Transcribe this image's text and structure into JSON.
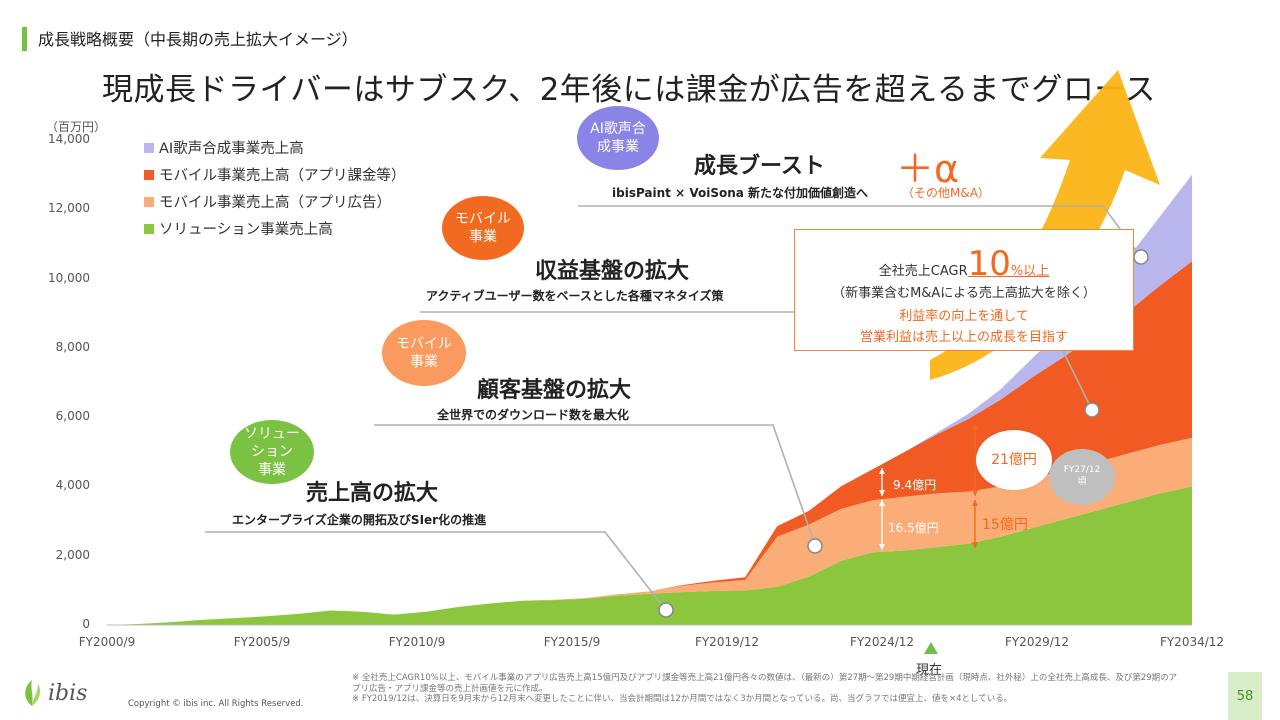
{
  "header": {
    "section_title": "成長戦略概要（中長期の売上拡大イメージ）",
    "headline": "現成長ドライバーはサブスク、2年後には課金が広告を超えるまでグロース"
  },
  "chart_data": {
    "type": "area",
    "stacked": true,
    "unit_label": "（百万円）",
    "ylim": [
      0,
      14000
    ],
    "y_ticks": [
      "0",
      "2,000",
      "4,000",
      "6,000",
      "8,000",
      "10,000",
      "12,000",
      "14,000"
    ],
    "x_tick_labels": [
      "FY2000/9",
      "FY2005/9",
      "FY2010/9",
      "FY2015/9",
      "FY2019/12",
      "FY2024/12",
      "FY2029/12",
      "FY2034/12"
    ],
    "x": [
      2000,
      2001,
      2002,
      2003,
      2004,
      2005,
      2006,
      2007,
      2008,
      2009,
      2010,
      2011,
      2012,
      2013,
      2014,
      2015,
      2016,
      2017,
      2018,
      2019,
      2020,
      2021,
      2022,
      2023,
      2024,
      2025,
      2026,
      2027,
      2028,
      2029,
      2030,
      2031,
      2032,
      2033,
      2034
    ],
    "series": [
      {
        "name": "ソリューション事業売上高",
        "color": "#8cc63f",
        "values": [
          0,
          30,
          80,
          150,
          200,
          250,
          320,
          420,
          380,
          300,
          380,
          520,
          620,
          700,
          720,
          760,
          850,
          900,
          950,
          980,
          1000,
          1100,
          1400,
          1850,
          2100,
          2150,
          2250,
          2350,
          2550,
          2800,
          3050,
          3300,
          3550,
          3800,
          4000
        ]
      },
      {
        "name": "モバイル事業売上高（アプリ広告）",
        "color": "#fbad78",
        "values": [
          0,
          0,
          0,
          0,
          0,
          0,
          0,
          0,
          0,
          0,
          0,
          0,
          0,
          0,
          10,
          20,
          40,
          70,
          180,
          250,
          300,
          1450,
          1500,
          1500,
          1500,
          1550,
          1550,
          1500,
          1450,
          1450,
          1400,
          1400,
          1400,
          1400,
          1400
        ]
      },
      {
        "name": "モバイル事業売上高（アプリ課金等）",
        "color": "#f15a22",
        "values": [
          0,
          0,
          0,
          0,
          0,
          0,
          0,
          0,
          0,
          0,
          0,
          0,
          0,
          0,
          0,
          0,
          0,
          0,
          20,
          50,
          80,
          300,
          400,
          650,
          900,
          1300,
          1700,
          2100,
          2500,
          2900,
          3300,
          3700,
          4100,
          4600,
          5100
        ]
      },
      {
        "name": "AI歌声合成事業売上高",
        "color": "#b9b6ee",
        "values": [
          0,
          0,
          0,
          0,
          0,
          0,
          0,
          0,
          0,
          0,
          0,
          0,
          0,
          0,
          0,
          0,
          0,
          0,
          0,
          0,
          0,
          0,
          0,
          0,
          0,
          0,
          50,
          150,
          300,
          550,
          850,
          1150,
          1550,
          2000,
          2500
        ]
      }
    ],
    "current_marker_label": "現在",
    "annotations": {
      "ad_revenue": "16.5億円",
      "billing_revenue": "9.4億円",
      "ad_target": "15億円",
      "billing_target": "21億円",
      "fy_estimate": "FY27/12\n頃"
    }
  },
  "bubbles": {
    "ai": "AI歌声合\n成事業",
    "mobile1": "モバイル\n事業",
    "mobile2": "モバイル\n事業",
    "solution": "ソリュー\nション\n事業"
  },
  "growth_boost": {
    "title": "成長ブースト",
    "plus_alpha": "＋α",
    "subtitle": "ibisPaint × VoiSona 新たな付加価値創造へ",
    "other": "（その他M&A）"
  },
  "revenue_base": {
    "title": "収益基盤の拡大",
    "subtitle": "アクティブユーザー数をベースとした各種マネタイズ策"
  },
  "customer_base": {
    "title": "顧客基盤の拡大",
    "subtitle": "全世界でのダウンロード数を最大化"
  },
  "sales_expansion": {
    "title": "売上高の拡大",
    "subtitle": "エンタープライズ企業の開拓及びSIer化の推進"
  },
  "cagr_box": {
    "prefix": "全社売上CAGR",
    "number": "10",
    "suffix": "%以上",
    "note": "（新事業含むM&Aによる売上高拡大を除く）",
    "line1": "利益率の向上を通して",
    "line2": "営業利益は売上以上の成長を目指す"
  },
  "footer": {
    "footnote1": "※ 全社売上CAGR10%以上、モバイル事業のアプリ広告売上高15億円及びアプリ課金等売上高21億円各々の数値は、（最新の）第27期〜第29期中期経営計画（現時点、社外秘）上の全社売上高成長、及び第29期のアプリ広告・アプリ課金等の売上計画値を元に作成。",
    "footnote2": "※ FY2019/12は、決算日を9月末から12月末へ変更したことに伴い、当会計期間は12か月間ではなく3か月間となっている。尚、当グラフでは便宜上、値を×4としている。",
    "logo_text": "ibis",
    "copyright": "Copyright © ibis inc. All Rights Reserved.",
    "page": "58"
  },
  "colors": {
    "green": "#8cc63f",
    "light_orange": "#fbad78",
    "orange": "#f15a22",
    "lavender": "#b9b6ee",
    "arrow_yellow": "#fbb414",
    "bubble_purple": "#8a84e6",
    "bubble_orange": "#f26a1f",
    "bubble_light_orange": "#fb9a5e",
    "bubble_green": "#7cc242",
    "annotation_orange": "#f26a1f",
    "estimate_gray": "#bfbfbf"
  }
}
